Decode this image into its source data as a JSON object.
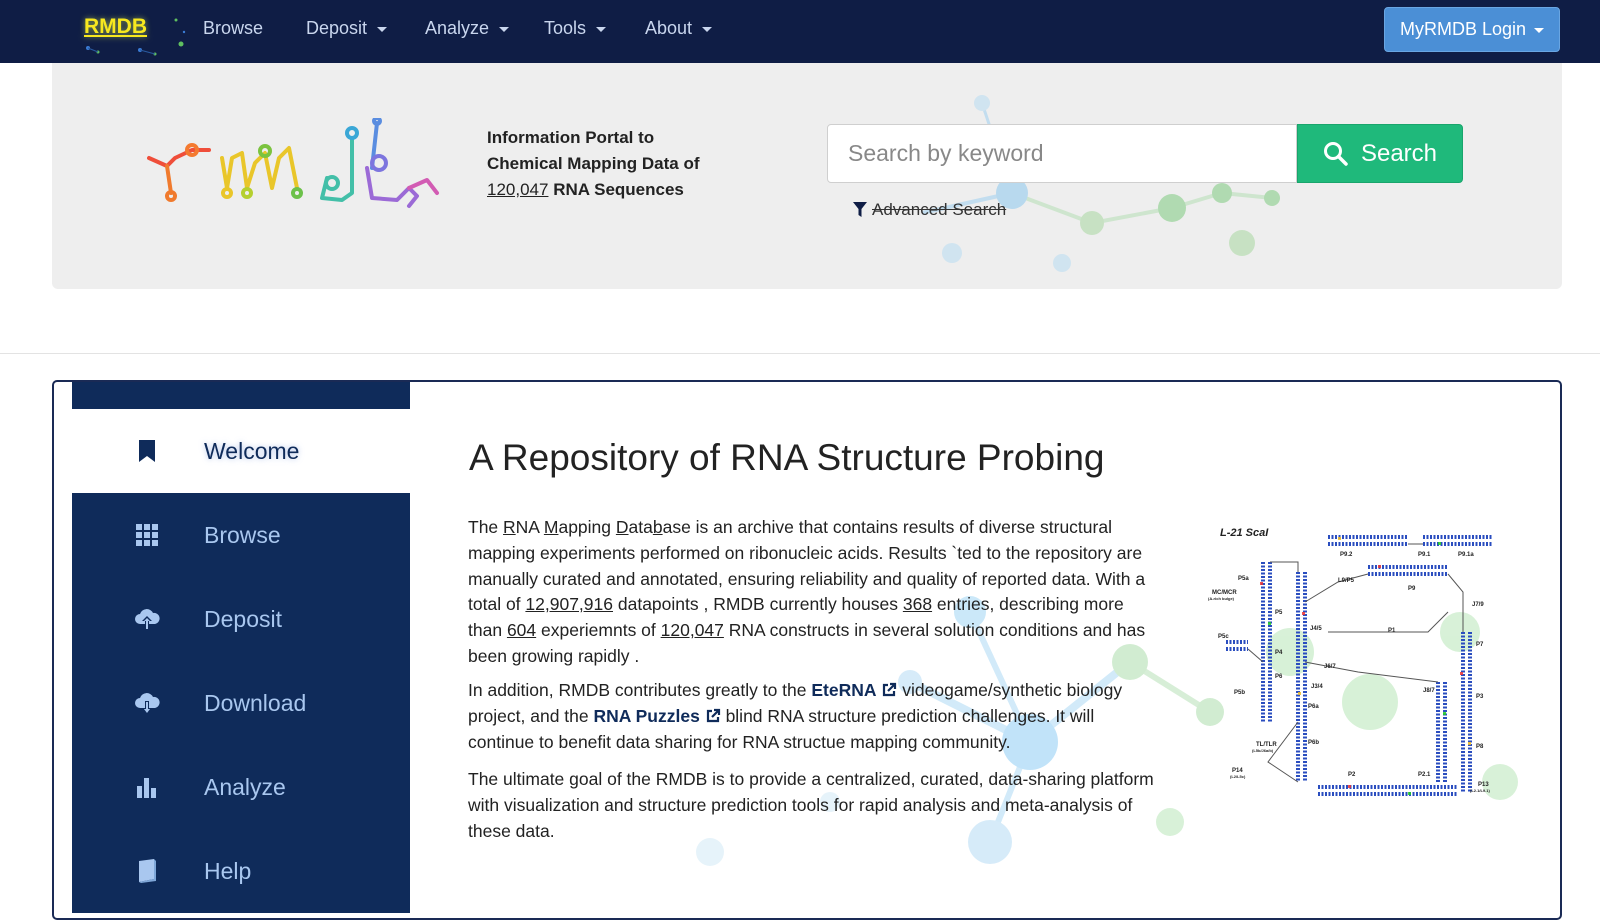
{
  "navbar": {
    "brand": "RMDB",
    "items": [
      {
        "label": "Browse",
        "dropdown": false
      },
      {
        "label": "Deposit",
        "dropdown": true
      },
      {
        "label": "Analyze",
        "dropdown": true
      },
      {
        "label": "Tools",
        "dropdown": true
      },
      {
        "label": "About",
        "dropdown": true
      }
    ],
    "login_label": "MyRMDB Login"
  },
  "hero": {
    "portal_line1": "Information Portal to",
    "portal_line2": "Chemical Mapping Data of",
    "portal_count": "120,047",
    "portal_line3": "RNA Sequences",
    "search_placeholder": "Search by keyword",
    "search_button": "Search",
    "advanced_search": "Advanced Search"
  },
  "sidebar": {
    "items": [
      {
        "label": "Welcome",
        "icon": "bookmark-icon",
        "active": true
      },
      {
        "label": "Browse",
        "icon": "grid-icon",
        "active": false
      },
      {
        "label": "Deposit",
        "icon": "cloud-upload-icon",
        "active": false
      },
      {
        "label": "Download",
        "icon": "cloud-download-icon",
        "active": false
      },
      {
        "label": "Analyze",
        "icon": "bar-chart-icon",
        "active": false
      },
      {
        "label": "Help",
        "icon": "book-icon",
        "active": false
      }
    ]
  },
  "main": {
    "title": "A Repository of RNA Structure Probing",
    "p1": {
      "t1": "The ",
      "r": "R",
      "t2": "NA ",
      "m": "M",
      "t3": "apping ",
      "d": "D",
      "t4": "ata",
      "b": "b",
      "t5": "ase is an archive that contains results of diverse structural mapping experiments performed on ribonucleic acids. Results `ted to the repository are manually curated and annotated, ensuring reliability and quality of reported data. With a total of ",
      "datapoints": "12,907,916",
      "t6": " datapoints , RMDB currently houses ",
      "entries": "368",
      "t7": " entries, describing more than ",
      "experiments": "604",
      "t8": " experiemnts of ",
      "constructs": "120,047",
      "t9": " RNA constructs in several solution conditions and has been growing rapidly ."
    },
    "p2": {
      "t1": "In addition, RMDB contributes greatly to the ",
      "eterna": "EteRNA",
      "t2": " videogame/synthetic biology project, and the ",
      "puzzles": "RNA Puzzles",
      "t3": " blind RNA structure prediction challenges. It will continue to benefit data sharing for RNA structue mapping community."
    },
    "p3": "The ultimate goal of the RMDB is to provide a centralized, curated, data-sharing platform with visualization and structure prediction tools for rapid analysis and meta-analysis of these data.",
    "diagram": {
      "title": "L-21 ScaI",
      "labels": [
        "P9.2",
        "P9.1",
        "P9.1a",
        "P5a",
        "MC/MCR",
        "(A-rich bulge)",
        "L9/P5",
        "P9",
        "J7/9",
        "P5c",
        "P5",
        "P4",
        "J4/5",
        "P1",
        "P7",
        "P6",
        "J6/7",
        "J8/7",
        "P3",
        "P5b",
        "P6a",
        "J3/4",
        "P6b",
        "TL/TLR",
        "(L5b/J6a/b)",
        "P14",
        "(L2/L5c)",
        "P2",
        "P2.1",
        "P8",
        "P13",
        "(L2.1/L9.1)"
      ]
    }
  },
  "colors": {
    "navbar": "#0f1d45",
    "brand": "#f7e81f",
    "login": "#4b8fd6",
    "search": "#1fb97b",
    "sidebar": "#0f2b5a",
    "sidebar_text": "#a9c7ef"
  }
}
